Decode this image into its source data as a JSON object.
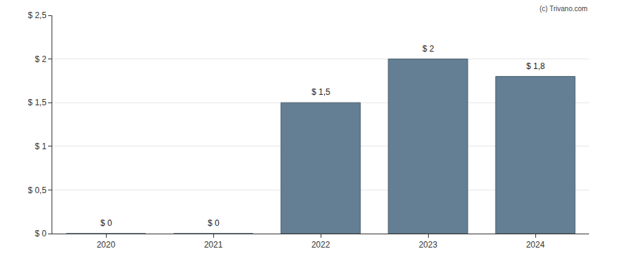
{
  "chart_data": {
    "type": "bar",
    "annotations": [
      "(c) Trivano.com"
    ],
    "categories": [
      "2020",
      "2021",
      "2022",
      "2023",
      "2024"
    ],
    "values": [
      0,
      0,
      1.5,
      2,
      1.8
    ],
    "value_labels": [
      "$ 0",
      "$ 0",
      "$ 1,5",
      "$ 2",
      "$ 1,8"
    ],
    "data_labels": true,
    "color": "#647f93",
    "ylim": [
      0,
      2.5
    ],
    "yticks": [
      {
        "value": 0,
        "label": "$ 0"
      },
      {
        "value": 0.5,
        "label": "$ 0,5"
      },
      {
        "value": 1,
        "label": "$ 1"
      },
      {
        "value": 1.5,
        "label": "$ 1,5"
      },
      {
        "value": 2,
        "label": "$ 2"
      },
      {
        "value": 2.5,
        "label": "$ 2,5"
      }
    ],
    "grid": true
  }
}
